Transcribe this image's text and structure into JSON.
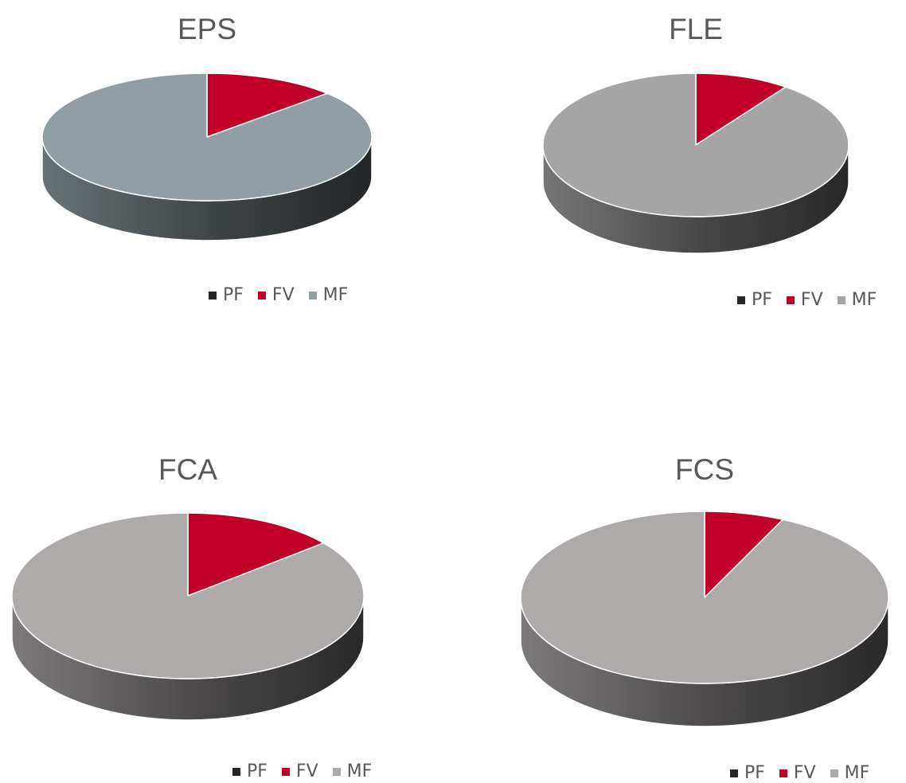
{
  "colors": {
    "PF": "#262626",
    "FV": "#c00029",
    "title_text": "#595959"
  },
  "chart_data": [
    {
      "type": "pie",
      "title": "EPS",
      "categories": [
        "PF",
        "FV",
        "MF"
      ],
      "values": [
        0,
        13,
        87
      ],
      "legend_position": "bottom",
      "style": "3d",
      "series_colors": [
        "#262626",
        "#c00029",
        "#919ea3"
      ]
    },
    {
      "type": "pie",
      "title": "FLE",
      "categories": [
        "PF",
        "FV",
        "MF"
      ],
      "values": [
        0,
        10,
        90
      ],
      "legend_position": "bottom",
      "style": "3d",
      "series_colors": [
        "#262626",
        "#c00029",
        "#a5a5a5"
      ]
    },
    {
      "type": "pie",
      "title": "FCA",
      "categories": [
        "PF",
        "FV",
        "MF"
      ],
      "values": [
        0,
        14,
        86
      ],
      "legend_position": "bottom",
      "style": "3d",
      "series_colors": [
        "#262626",
        "#c00029",
        "#aeaaaa"
      ]
    },
    {
      "type": "pie",
      "title": "FCS",
      "categories": [
        "PF",
        "FV",
        "MF"
      ],
      "values": [
        0,
        7,
        93
      ],
      "legend_position": "bottom",
      "style": "3d",
      "series_colors": [
        "#262626",
        "#c00029",
        "#aeaaaa"
      ]
    }
  ]
}
